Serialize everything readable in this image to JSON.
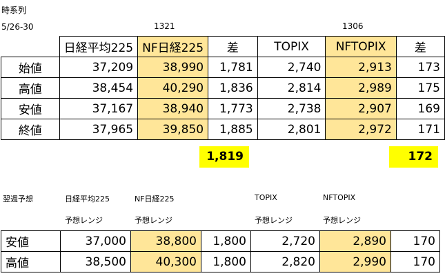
{
  "header": {
    "title": "時系列",
    "date_range": "5/26-30",
    "code_1321": "1321",
    "code_1306": "1306"
  },
  "table1": {
    "headers": [
      "日経平均225",
      "NF日経225",
      "差",
      "TOPIX",
      "NFTOPIX",
      "差"
    ],
    "rows": [
      {
        "label": "始値",
        "cells": [
          "37,209",
          "38,990",
          "1,781",
          "2,740",
          "2,913",
          "173"
        ]
      },
      {
        "label": "高値",
        "cells": [
          "38,454",
          "40,290",
          "1,836",
          "2,814",
          "2,989",
          "175"
        ]
      },
      {
        "label": "安値",
        "cells": [
          "37,167",
          "38,940",
          "1,773",
          "2,738",
          "2,907",
          "169"
        ]
      },
      {
        "label": "終値",
        "cells": [
          "37,965",
          "39,850",
          "1,885",
          "2,801",
          "2,972",
          "171"
        ]
      }
    ],
    "avg_diff_nikkei": "1,819",
    "avg_diff_topix": "172"
  },
  "forecast": {
    "title": "翌週予想",
    "col_nikkei": "日経平均225",
    "col_nf_nikkei": "NF日経225",
    "col_topix": "TOPIX",
    "col_nftopix": "NFTOPIX",
    "range_label": "予想レンジ",
    "rows": [
      {
        "label": "安値",
        "cells": [
          "37,000",
          "38,800",
          "1,800",
          "2,720",
          "2,890",
          "170"
        ]
      },
      {
        "label": "高値",
        "cells": [
          "38,500",
          "40,300",
          "1,800",
          "2,820",
          "2,990",
          "170"
        ]
      }
    ]
  },
  "colors": {
    "nf_cell": "#ffe699",
    "highlight": "#ffff00"
  }
}
